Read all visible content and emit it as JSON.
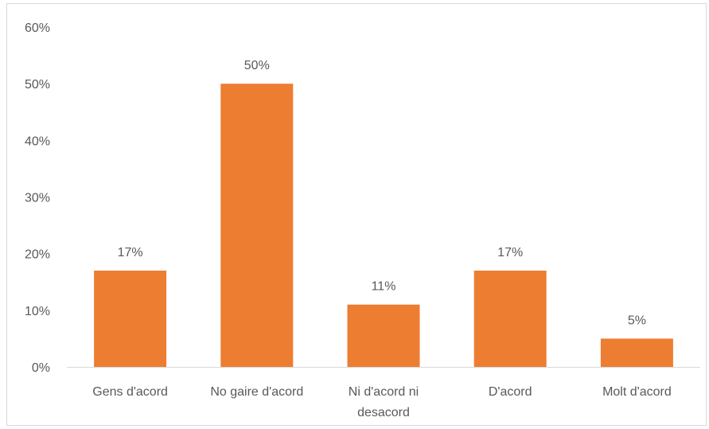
{
  "chart_data": {
    "type": "bar",
    "title": "",
    "xlabel": "",
    "ylabel": "",
    "categories": [
      [
        "Gens d'acord"
      ],
      [
        "No gaire d'acord"
      ],
      [
        "Ni d'acord ni",
        "desacord"
      ],
      [
        "D'acord"
      ],
      [
        "Molt d'acord"
      ]
    ],
    "values": [
      17,
      50,
      11,
      17,
      5
    ],
    "data_labels": [
      "17%",
      "50%",
      "11%",
      "17%",
      "5%"
    ],
    "yticks": [
      0,
      10,
      20,
      30,
      40,
      50,
      60
    ],
    "ytick_labels": [
      "0%",
      "10%",
      "20%",
      "30%",
      "40%",
      "50%",
      "60%"
    ],
    "ylim": [
      0,
      60
    ],
    "bar_color": "#ED7D31",
    "grid": false,
    "legend": "none"
  }
}
